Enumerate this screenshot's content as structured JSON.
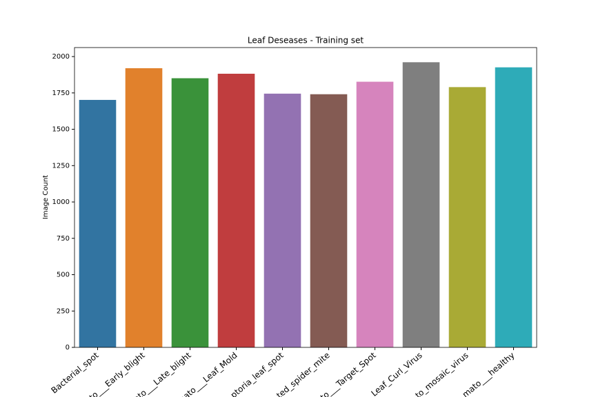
{
  "chart_data": {
    "type": "bar",
    "title": "Leaf Deseases - Training set",
    "ylabel": "Image Count",
    "categories": [
      "Bacterial_spot",
      "to___Early_blight",
      "ato___Late_blight",
      "nato___Leaf_Mold",
      "ptoria_leaf_spot",
      "ted_spider_mite",
      "to___Target_Spot",
      "Leaf_Curl_Virus",
      "to_mosaic_virus",
      "mato___healthy"
    ],
    "values": [
      1702,
      1920,
      1851,
      1882,
      1745,
      1741,
      1827,
      1961,
      1790,
      1926
    ],
    "colors": [
      "#3274a1",
      "#e1812c",
      "#3a923a",
      "#c03d3e",
      "#9372b2",
      "#845b53",
      "#d684bd",
      "#7f7f7f",
      "#a9aa35",
      "#2eabb8"
    ],
    "ylim": [
      0,
      2062
    ],
    "yticks": [
      0,
      250,
      500,
      750,
      1000,
      1250,
      1500,
      1750,
      2000
    ]
  }
}
